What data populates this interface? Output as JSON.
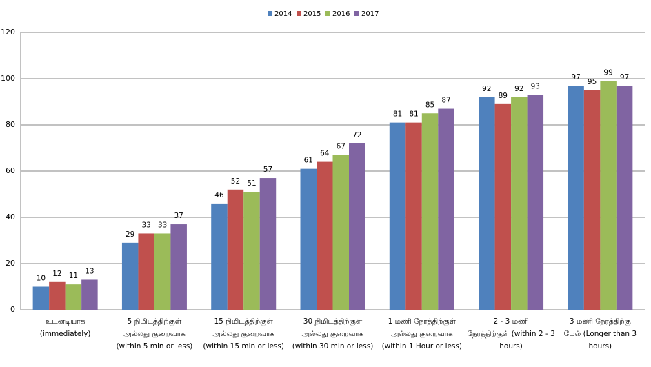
{
  "chart_data": {
    "type": "bar",
    "categories": [
      "உடனடியாக (immediately)",
      "5 நிமிடத்திற்குள்\nஅல்லது குறைவாக\n(within 5 min or less)",
      "15 நிமிடத்திற்குள்\nஅல்லது குறைவாக\n(within 15 min or less)",
      "30 நிமிடத்திற்குள்\nஅல்லது குறைவாக\n(within 30 min or less)",
      "1 மணி நேரத்திற்குள்\nஅல்லது குறைவாக\n(within 1 Hour or less)",
      "2 - 3 மணி\nநேரத்திற்குள் (within 2 - 3\nhours)",
      "3 மணி நேரத்திற்கு\nமேல் (Longer than 3 hours)"
    ],
    "series": [
      {
        "name": "2014",
        "color": "#4f81bd",
        "values": [
          10,
          29,
          46,
          61,
          81,
          92,
          97
        ]
      },
      {
        "name": "2015",
        "color": "#c0504d",
        "values": [
          12,
          33,
          52,
          64,
          81,
          89,
          95
        ]
      },
      {
        "name": "2016",
        "color": "#9bbb59",
        "values": [
          11,
          33,
          51,
          67,
          85,
          92,
          99
        ]
      },
      {
        "name": "2017",
        "color": "#8064a2",
        "values": [
          13,
          37,
          57,
          72,
          87,
          93,
          97
        ]
      }
    ],
    "ylim": [
      0,
      120
    ],
    "yticks": [
      0,
      20,
      40,
      60,
      80,
      100,
      120
    ],
    "grid": true,
    "legend": "top"
  }
}
